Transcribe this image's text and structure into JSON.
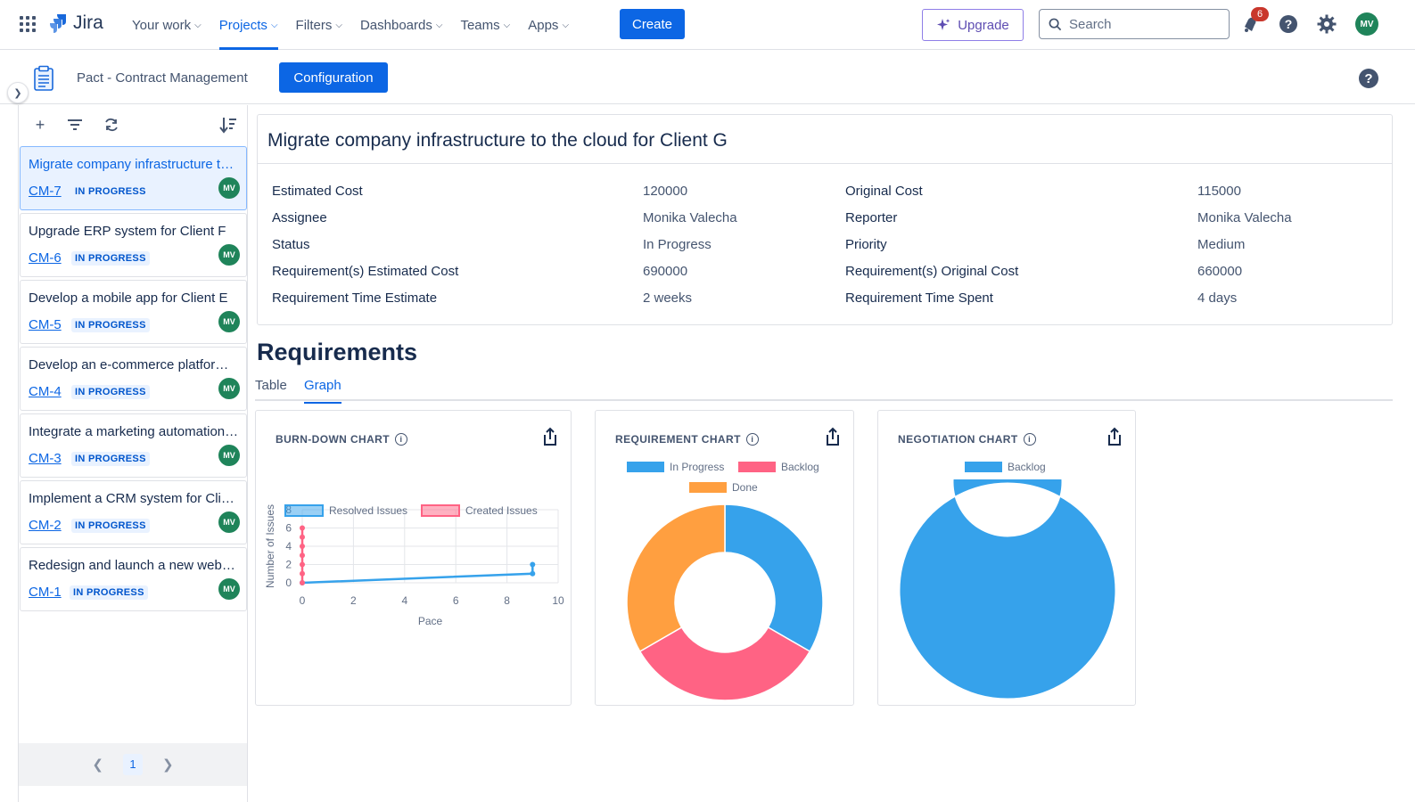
{
  "topnav": {
    "app_name": "Jira",
    "items": [
      {
        "label": "Your work"
      },
      {
        "label": "Projects"
      },
      {
        "label": "Filters"
      },
      {
        "label": "Dashboards"
      },
      {
        "label": "Teams"
      },
      {
        "label": "Apps"
      }
    ],
    "create_label": "Create",
    "upgrade_label": "Upgrade",
    "search_placeholder": "Search",
    "notification_count": "6",
    "user_initials": "MV"
  },
  "project": {
    "name": "Pact - Contract Management",
    "config_label": "Configuration"
  },
  "issues": [
    {
      "title": "Migrate company infrastructure to the cloud for Client G",
      "key": "CM-7",
      "status": "IN PROGRESS",
      "assignee": "MV"
    },
    {
      "title": "Upgrade ERP system for Client F",
      "key": "CM-6",
      "status": "IN PROGRESS",
      "assignee": "MV"
    },
    {
      "title": "Develop a mobile app for Client E",
      "key": "CM-5",
      "status": "IN PROGRESS",
      "assignee": "MV"
    },
    {
      "title": "Develop an e-commerce platform for Client D",
      "key": "CM-4",
      "status": "IN PROGRESS",
      "assignee": "MV"
    },
    {
      "title": "Integrate a marketing automation system for Client C",
      "key": "CM-3",
      "status": "IN PROGRESS",
      "assignee": "MV"
    },
    {
      "title": "Implement a CRM system for Client B",
      "key": "CM-2",
      "status": "IN PROGRESS",
      "assignee": "MV"
    },
    {
      "title": "Redesign and launch a new website for Client A",
      "key": "CM-1",
      "status": "IN PROGRESS",
      "assignee": "MV"
    }
  ],
  "pagination": {
    "current": "1"
  },
  "details": {
    "title": "Migrate company infrastructure to the cloud for Client G",
    "left": [
      {
        "label": "Estimated Cost",
        "value": "120000"
      },
      {
        "label": "Assignee",
        "value": "Monika Valecha"
      },
      {
        "label": "Status",
        "value": "In Progress"
      },
      {
        "label": "Requirement(s) Estimated Cost",
        "value": "690000"
      },
      {
        "label": "Requirement Time Estimate",
        "value": "2 weeks"
      }
    ],
    "right": [
      {
        "label": "Original Cost",
        "value": "115000"
      },
      {
        "label": "Reporter",
        "value": "Monika Valecha"
      },
      {
        "label": "Priority",
        "value": "Medium"
      },
      {
        "label": "Requirement(s) Original Cost",
        "value": "660000"
      },
      {
        "label": "Requirement Time Spent",
        "value": "4 days"
      }
    ]
  },
  "requirements": {
    "heading": "Requirements",
    "tabs": [
      "Table",
      "Graph"
    ],
    "active_tab": "Graph"
  },
  "chart_data": [
    {
      "type": "line",
      "title": "BURN-DOWN CHART",
      "xlabel": "Pace",
      "ylabel": "Number of Issues",
      "xlim": [
        0,
        10
      ],
      "ylim": [
        0,
        8
      ],
      "xticks": [
        0,
        2,
        4,
        6,
        8,
        10
      ],
      "yticks": [
        0,
        2,
        4,
        6,
        8
      ],
      "series": [
        {
          "name": "Resolved Issues",
          "color": "#36a2eb",
          "points": [
            [
              0,
              0
            ],
            [
              9,
              1
            ],
            [
              9,
              2
            ]
          ]
        },
        {
          "name": "Created Issues",
          "color": "#ff6384",
          "points": [
            [
              0,
              6
            ],
            [
              0,
              5
            ],
            [
              0,
              4
            ],
            [
              0,
              3
            ],
            [
              0,
              2
            ],
            [
              0,
              1
            ],
            [
              0,
              0
            ]
          ]
        }
      ]
    },
    {
      "type": "pie",
      "title": "REQUIREMENT CHART",
      "labels": [
        "In Progress",
        "Backlog",
        "Done"
      ],
      "values": [
        1,
        1,
        1
      ],
      "colors": [
        "#36a2eb",
        "#ff6384",
        "#ff9f40"
      ]
    },
    {
      "type": "pie",
      "title": "NEGOTIATION CHART",
      "labels": [
        "Backlog"
      ],
      "values": [
        1
      ],
      "colors": [
        "#36a2eb"
      ]
    }
  ]
}
